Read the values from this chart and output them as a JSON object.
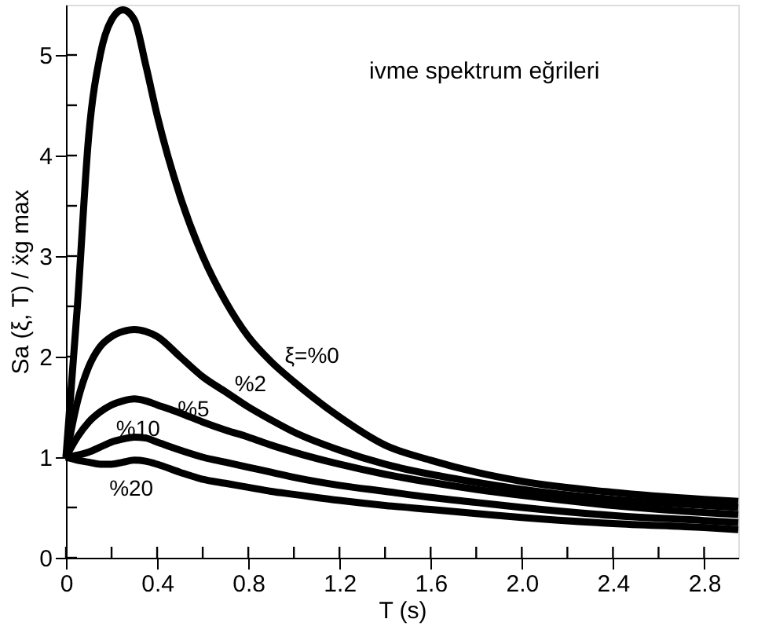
{
  "chart_data": {
    "type": "line",
    "title": "ivme spektrum eğrileri",
    "xlabel": "T (s)",
    "ylabel": "Sa (ξ, T) / ẍg max",
    "x": [
      0,
      0.05,
      0.1,
      0.15,
      0.2,
      0.25,
      0.3,
      0.35,
      0.4,
      0.5,
      0.6,
      0.7,
      0.8,
      0.9,
      1.0,
      1.2,
      1.4,
      1.6,
      1.8,
      2.0,
      2.4,
      2.8,
      2.95
    ],
    "series": [
      {
        "name": "ξ=%0",
        "color": "#000000",
        "values": [
          1,
          2.5,
          4.2,
          5.0,
          5.35,
          5.45,
          5.35,
          4.9,
          4.4,
          3.6,
          3.0,
          2.55,
          2.2,
          1.95,
          1.75,
          1.4,
          1.12,
          0.97,
          0.85,
          0.76,
          0.65,
          0.58,
          0.56
        ]
      },
      {
        "name": "%2",
        "color": "#000000",
        "values": [
          1,
          1.55,
          1.9,
          2.1,
          2.2,
          2.25,
          2.27,
          2.25,
          2.2,
          2.0,
          1.8,
          1.65,
          1.5,
          1.37,
          1.25,
          1.07,
          0.93,
          0.83,
          0.75,
          0.68,
          0.58,
          0.52,
          0.5
        ]
      },
      {
        "name": "%5",
        "color": "#000000",
        "values": [
          1,
          1.2,
          1.35,
          1.45,
          1.52,
          1.56,
          1.58,
          1.56,
          1.52,
          1.44,
          1.35,
          1.27,
          1.2,
          1.12,
          1.05,
          0.93,
          0.83,
          0.75,
          0.68,
          0.62,
          0.52,
          0.45,
          0.43
        ]
      },
      {
        "name": "%10",
        "color": "#000000",
        "values": [
          1,
          1.02,
          1.05,
          1.1,
          1.15,
          1.18,
          1.2,
          1.19,
          1.15,
          1.07,
          1.0,
          0.95,
          0.9,
          0.85,
          0.8,
          0.72,
          0.66,
          0.6,
          0.55,
          0.5,
          0.42,
          0.37,
          0.35
        ]
      },
      {
        "name": "%20",
        "color": "#000000",
        "values": [
          1,
          0.97,
          0.95,
          0.93,
          0.93,
          0.95,
          0.97,
          0.96,
          0.93,
          0.85,
          0.78,
          0.74,
          0.7,
          0.66,
          0.63,
          0.57,
          0.52,
          0.48,
          0.44,
          0.4,
          0.34,
          0.3,
          0.28
        ]
      }
    ],
    "xlim": [
      0,
      2.95
    ],
    "ylim": [
      0,
      5.5
    ],
    "xticks": [
      0,
      {
        "value": 0.2,
        "label": null
      },
      0.4,
      {
        "value": 0.6,
        "label": null
      },
      0.8,
      {
        "value": 1.0,
        "label": null
      },
      1.2,
      {
        "value": 1.4,
        "label": null
      },
      1.6,
      {
        "value": 1.8,
        "label": null
      },
      {
        "value": 2.0,
        "label": "2.0"
      },
      {
        "value": 2.2,
        "label": null
      },
      2.4,
      {
        "value": 2.6,
        "label": null
      },
      2.8
    ],
    "yticks": [
      0,
      {
        "value": 0.5,
        "label": null
      },
      1,
      {
        "value": 1.5,
        "label": null
      },
      2,
      {
        "value": 2.5,
        "label": null
      },
      3,
      {
        "value": 3.5,
        "label": null
      },
      4,
      {
        "value": 4.5,
        "label": null
      },
      5
    ],
    "grid": false,
    "legend": false,
    "marker": "none",
    "line_style": "solid"
  }
}
